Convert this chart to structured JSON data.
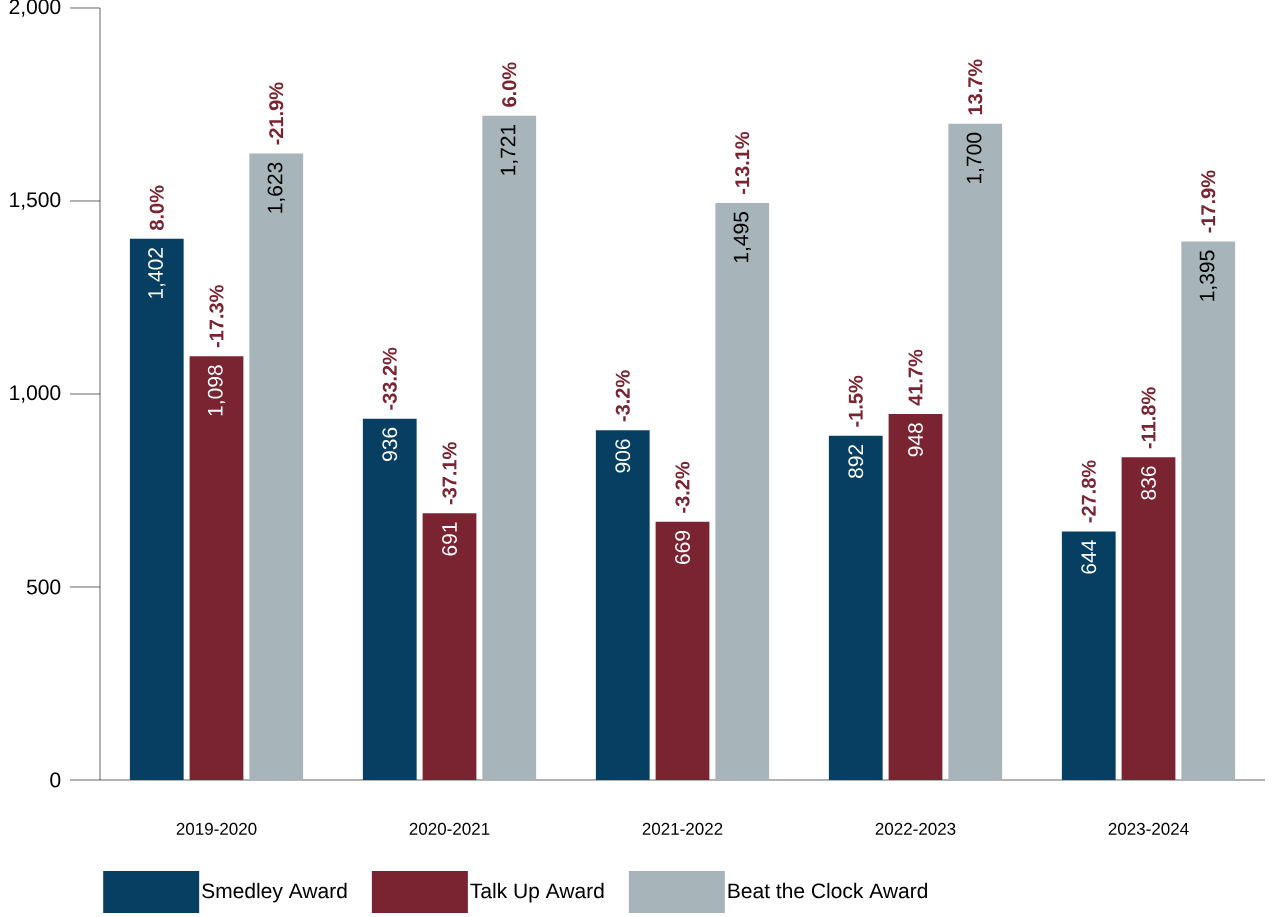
{
  "chart_data": {
    "type": "bar",
    "categories": [
      "2019-2020",
      "2020-2021",
      "2021-2022",
      "2022-2023",
      "2023-2024"
    ],
    "series": [
      {
        "name": "Smedley Award",
        "color": "#073f63",
        "values": [
          1402,
          936,
          906,
          892,
          644
        ],
        "value_labels": [
          "1,402",
          "936",
          "906",
          "892",
          "644"
        ]
      },
      {
        "name": "Talk Up Award",
        "color": "#7a2331",
        "values": [
          1098,
          691,
          669,
          948,
          836
        ],
        "value_labels": [
          "1,098",
          "691",
          "669",
          "948",
          "836"
        ]
      },
      {
        "name": "Beat the Clock Award",
        "color": "#a7b5ba",
        "values": [
          1623,
          1721,
          1495,
          1700,
          1395
        ],
        "value_labels": [
          "1,623",
          "1,721",
          "1,495",
          "1,700",
          "1,395"
        ]
      }
    ],
    "annotations": [
      "8.0%",
      "-33.2%",
      "-3.2%",
      "-1.5%",
      "-27.8%",
      "-17.3%",
      "-37.1%",
      "-3.2%",
      "41.7%",
      "-11.8%",
      "-21.9%",
      "6.0%",
      "-13.1%",
      "13.7%",
      "-17.9%"
    ],
    "ylim": [
      0,
      2000
    ],
    "yticks": [
      0,
      {
        "value": 500,
        "label": "500"
      },
      {
        "value": 1000,
        "label": "1,000"
      },
      {
        "value": 1500,
        "label": "1,500"
      },
      {
        "value": 2000,
        "label": "2,000"
      }
    ],
    "legend": "bottom",
    "grid": false
  }
}
